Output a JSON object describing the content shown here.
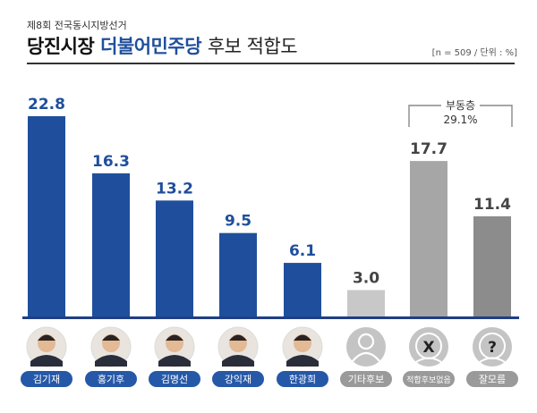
{
  "header": {
    "subtitle": "제8회 전국동시지방선거",
    "title_part1": "당진시장",
    "title_part2": "더불어민주당",
    "title_part3": "후보 적합도",
    "note": "[n = 509 / 단위 : %]"
  },
  "colors": {
    "candidate": "#1f4f9c",
    "other": "#c8c8c8",
    "undecided": "#a6a6a6",
    "dontknow": "#8c8c8c",
    "label_blue": "#1f4f9c",
    "label_gray": "#444444"
  },
  "bracket": {
    "label": "부동층",
    "value": "29.1%"
  },
  "chart_data": {
    "type": "bar",
    "categories": [
      "김기재",
      "홍기후",
      "김명선",
      "강익재",
      "한광희",
      "기타후보",
      "적합후보없음",
      "잘모름"
    ],
    "values": [
      22.8,
      16.3,
      13.2,
      9.5,
      6.1,
      3.0,
      17.7,
      11.4
    ],
    "value_labels": [
      "22.8",
      "16.3",
      "13.2",
      "9.5",
      "6.1",
      "3.0",
      "17.7",
      "11.4"
    ],
    "groups": [
      "candidate",
      "candidate",
      "candidate",
      "candidate",
      "candidate",
      "other",
      "undecided",
      "dontknow"
    ],
    "icons": [
      "photo",
      "photo",
      "photo",
      "photo",
      "photo",
      "person-icon",
      "x-icon",
      "question-icon"
    ],
    "ylim": [
      0,
      22.8
    ],
    "grid": false,
    "legend": "none"
  }
}
